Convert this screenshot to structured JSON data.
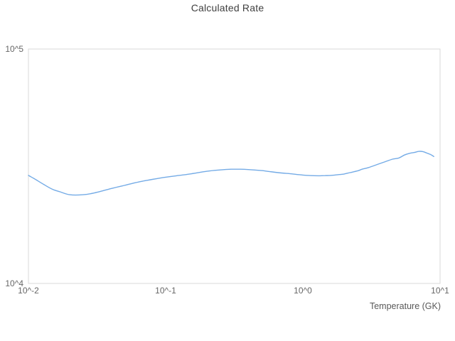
{
  "title": "Calculated Rate",
  "chart_data": {
    "type": "line",
    "title": "Calculated Rate",
    "xlabel": "Temperature (GK)",
    "ylabel": "",
    "xscale": "log",
    "yscale": "log",
    "xlim": [
      0.01,
      10
    ],
    "ylim": [
      10000,
      100000
    ],
    "grid": false,
    "legend": false,
    "x_ticks": [
      {
        "value": 0.01,
        "label": "10^-2"
      },
      {
        "value": 0.1,
        "label": "10^-1"
      },
      {
        "value": 1,
        "label": "10^0"
      },
      {
        "value": 10,
        "label": "10^1"
      }
    ],
    "y_ticks": [
      {
        "value": 10000,
        "label": "10^4"
      },
      {
        "value": 100000,
        "label": "10^5"
      }
    ],
    "series": [
      {
        "name": "Calculated Rate",
        "color": "#74abe6",
        "x": [
          0.01,
          0.011,
          0.013,
          0.015,
          0.017,
          0.02,
          0.025,
          0.03,
          0.04,
          0.05,
          0.06,
          0.07,
          0.08,
          0.1,
          0.12,
          0.15,
          0.2,
          0.25,
          0.3,
          0.35,
          0.4,
          0.5,
          0.6,
          0.7,
          0.8,
          1.0,
          1.15,
          1.3,
          1.45,
          1.6,
          1.8,
          2.0,
          2.2,
          2.5,
          2.7,
          3.0,
          3.5,
          4.0,
          4.5,
          5.0,
          5.5,
          6.0,
          6.5,
          7.0,
          7.5,
          8.0,
          8.5,
          9.0
        ],
        "y": [
          28900,
          28000,
          26400,
          25200,
          24600,
          23900,
          23900,
          24300,
          25400,
          26200,
          26900,
          27400,
          27800,
          28400,
          28800,
          29300,
          30100,
          30500,
          30700,
          30700,
          30600,
          30300,
          29900,
          29600,
          29400,
          29000,
          28850,
          28800,
          28850,
          28900,
          29100,
          29300,
          29700,
          30200,
          30700,
          31200,
          32200,
          33100,
          33900,
          34300,
          35300,
          35900,
          36200,
          36600,
          36500,
          36000,
          35500,
          34800
        ]
      }
    ]
  },
  "colors": {
    "line": "#74abe6",
    "border": "#d9d9d9",
    "title_text": "#3f3f3f",
    "tick_text": "#666666",
    "axis_title_text": "#595959",
    "background": "#ffffff"
  }
}
